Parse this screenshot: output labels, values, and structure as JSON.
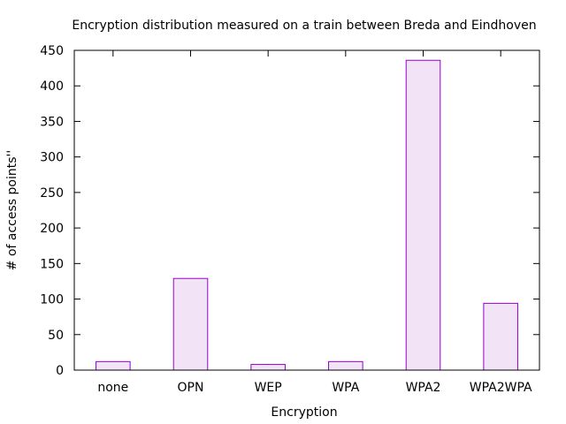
{
  "chart_data": {
    "type": "bar",
    "title": "Encryption distribution measured on a train between Breda and Eindhoven",
    "xlabel": "Encryption",
    "ylabel": "# of access points''",
    "categories": [
      "none",
      "OPN",
      "WEP",
      "WPA",
      "WPA2",
      "WPA2WPA"
    ],
    "values": [
      12,
      129,
      8,
      12,
      436,
      94
    ],
    "ylim": [
      0,
      450
    ],
    "yticks": [
      0,
      50,
      100,
      150,
      200,
      250,
      300,
      350,
      400,
      450
    ],
    "grid": false,
    "legend": "none",
    "bar_fill": "#f3e3f7",
    "bar_stroke": "#9400d3"
  }
}
